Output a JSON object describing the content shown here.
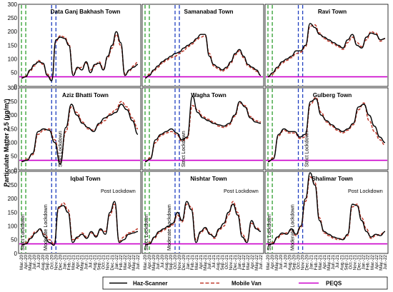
{
  "chart_data": {
    "type": "line",
    "ylabel": "Particulate Matter 2.5 (µg/m³)",
    "ylim": [
      0,
      300
    ],
    "yticks": [
      0,
      50,
      100,
      150,
      200,
      250,
      300
    ],
    "x_categories": [
      "Mar.-20",
      "Apr.-20",
      "May.-20",
      "Jun.-20",
      "Jul.-20",
      "Aug.-20",
      "Sep.-20",
      "Oct.-20",
      "Nov.-20",
      "Dec.-20",
      "Jan.-21",
      "Feb.-21",
      "Mar.-21",
      "Apr.-21",
      "May.-21",
      "Jun.-21",
      "Jul.-21",
      "Aug.-21",
      "Sep.-21",
      "Oct.-21",
      "Nov.-21",
      "Dec.-21",
      "Jan.-22",
      "Feb.-22",
      "Mar.-22",
      "Apr.-22",
      "May.-22",
      "Jun.-22"
    ],
    "x_tick_labels": [
      "Mar.-20",
      "Apr.-20",
      "May.-20",
      "Jun.-20",
      "Jul.-20",
      "Aug.-20",
      "Sep.-20",
      "Oct.-20",
      "Nov.-20",
      "Dec.-20",
      "Jan.-21",
      "Feb.-21",
      "Mar.-21",
      "Apr.-21",
      "May.-21",
      "Jun.-21",
      "Jul.-21",
      "Aug.-21",
      "Sep.-21",
      "Oct.-21",
      "Nov.-21",
      "Dec.-21",
      "Jan.-22",
      "Feb.-22",
      "Mar.-22",
      "Apr.-22",
      "May.-22",
      "Jun.-22"
    ],
    "peqs_value": 35,
    "lockdown_markers": {
      "green_x": [
        "Mar.-20",
        "Apr.-20"
      ],
      "blue_x": [
        "Oct.-20",
        "Nov.-20"
      ]
    },
    "legend": [
      "Haz-Scanner",
      "Mobile Van",
      "PEQS"
    ],
    "colors": {
      "haz": "#000000",
      "van": "#c0392b",
      "peqs": "#cc00cc",
      "green_marker": "#2e9e2e",
      "blue_marker": "#1f3fbf"
    },
    "panels": [
      {
        "title": "Data Ganj Bakhash Town",
        "annotations": [],
        "haz": [
          30,
          35,
          60,
          80,
          90,
          85,
          40,
          20,
          170,
          180,
          175,
          150,
          40,
          70,
          60,
          90,
          50,
          80,
          85,
          60,
          110,
          150,
          200,
          160,
          40,
          60,
          70,
          80
        ],
        "van": [
          30,
          38,
          55,
          75,
          95,
          80,
          45,
          25,
          165,
          185,
          180,
          155,
          45,
          65,
          70,
          85,
          60,
          75,
          90,
          65,
          105,
          140,
          190,
          150,
          45,
          55,
          75,
          90
        ]
      },
      {
        "title": "Samanabad Town",
        "annotations": [],
        "haz": [
          30,
          40,
          60,
          75,
          90,
          100,
          110,
          120,
          125,
          140,
          150,
          160,
          175,
          190,
          190,
          110,
          80,
          70,
          60,
          70,
          90,
          120,
          135,
          110,
          80,
          70,
          60,
          40
        ],
        "van": [
          30,
          45,
          55,
          70,
          85,
          95,
          105,
          110,
          120,
          130,
          145,
          155,
          170,
          180,
          185,
          120,
          75,
          65,
          55,
          65,
          85,
          115,
          130,
          105,
          75,
          65,
          55,
          40
        ]
      },
      {
        "title": "Ravi Town",
        "annotations": [],
        "haz": [
          35,
          50,
          70,
          90,
          100,
          110,
          130,
          130,
          150,
          230,
          215,
          190,
          180,
          170,
          160,
          150,
          140,
          170,
          190,
          150,
          140,
          180,
          195,
          190,
          170,
          175
        ],
        "van": [
          35,
          45,
          65,
          85,
          95,
          105,
          120,
          125,
          145,
          220,
          225,
          195,
          175,
          165,
          155,
          145,
          135,
          160,
          180,
          160,
          145,
          170,
          200,
          195,
          165,
          175
        ]
      },
      {
        "title": "Aziz Bhatti Town",
        "annotations": [
          "Strict Lockdown"
        ],
        "haz": [
          30,
          35,
          60,
          140,
          150,
          145,
          100,
          20,
          155,
          240,
          200,
          170,
          155,
          140,
          170,
          190,
          200,
          210,
          240,
          220,
          180,
          130
        ],
        "van": [
          30,
          40,
          55,
          130,
          145,
          150,
          110,
          25,
          140,
          230,
          210,
          175,
          150,
          145,
          165,
          180,
          205,
          220,
          250,
          230,
          190,
          150
        ]
      },
      {
        "title": "Wagha Town",
        "annotations": [
          "Strict Lockdown"
        ],
        "haz": [
          30,
          40,
          110,
          130,
          140,
          150,
          135,
          110,
          120,
          270,
          210,
          190,
          180,
          170,
          165,
          160,
          170,
          200,
          250,
          230,
          190,
          175,
          170
        ],
        "van": [
          30,
          45,
          100,
          125,
          135,
          140,
          130,
          105,
          115,
          235,
          220,
          195,
          185,
          175,
          160,
          155,
          165,
          195,
          245,
          235,
          195,
          180,
          175
        ]
      },
      {
        "title": "Gulberg Town",
        "annotations": [
          "Strict Lockdown"
        ],
        "haz": [
          30,
          40,
          130,
          150,
          140,
          140,
          120,
          130,
          250,
          260,
          200,
          180,
          165,
          150,
          140,
          150,
          170,
          230,
          240,
          200,
          160,
          120,
          100
        ],
        "van": [
          30,
          45,
          125,
          145,
          135,
          135,
          115,
          120,
          240,
          265,
          210,
          175,
          160,
          145,
          135,
          145,
          165,
          220,
          245,
          180,
          140,
          110,
          90
        ]
      },
      {
        "title": "Iqbal Town",
        "annotations": [
          "Strict Lockdown",
          "Moderate Lockdown",
          "Post Lockdown"
        ],
        "haz": [
          30,
          35,
          55,
          75,
          90,
          60,
          40,
          30,
          170,
          175,
          150,
          40,
          60,
          70,
          55,
          80,
          60,
          90,
          70,
          150,
          190,
          40,
          50,
          70,
          75,
          80
        ],
        "van": [
          30,
          40,
          60,
          80,
          85,
          70,
          50,
          35,
          165,
          185,
          160,
          50,
          55,
          75,
          60,
          75,
          65,
          85,
          80,
          140,
          180,
          45,
          60,
          75,
          80,
          90
        ]
      },
      {
        "title": "Nishtar Town",
        "annotations": [
          "Strict Lockdown",
          "Moderate Lockdown",
          "Post Lockdown"
        ],
        "haz": [
          30,
          35,
          60,
          80,
          90,
          100,
          110,
          150,
          120,
          190,
          160,
          40,
          80,
          95,
          70,
          60,
          90,
          110,
          150,
          180,
          140,
          60,
          40,
          120,
          90,
          80
        ],
        "van": [
          30,
          40,
          55,
          75,
          85,
          95,
          105,
          140,
          115,
          180,
          170,
          50,
          75,
          90,
          75,
          55,
          85,
          100,
          140,
          190,
          150,
          70,
          45,
          110,
          95,
          85
        ]
      },
      {
        "title": "Shalimar Town",
        "annotations": [
          "Strict Lockdown",
          "Moderate Lockdown",
          "Post Lockdown"
        ],
        "haz": [
          30,
          35,
          60,
          75,
          70,
          90,
          70,
          100,
          200,
          295,
          250,
          120,
          80,
          70,
          60,
          55,
          50,
          70,
          180,
          175,
          120,
          80,
          60,
          70,
          65,
          80
        ],
        "van": [
          30,
          40,
          55,
          70,
          75,
          85,
          65,
          95,
          190,
          280,
          260,
          130,
          75,
          65,
          55,
          50,
          55,
          65,
          170,
          180,
          130,
          90,
          55,
          65,
          70,
          80
        ]
      }
    ]
  }
}
